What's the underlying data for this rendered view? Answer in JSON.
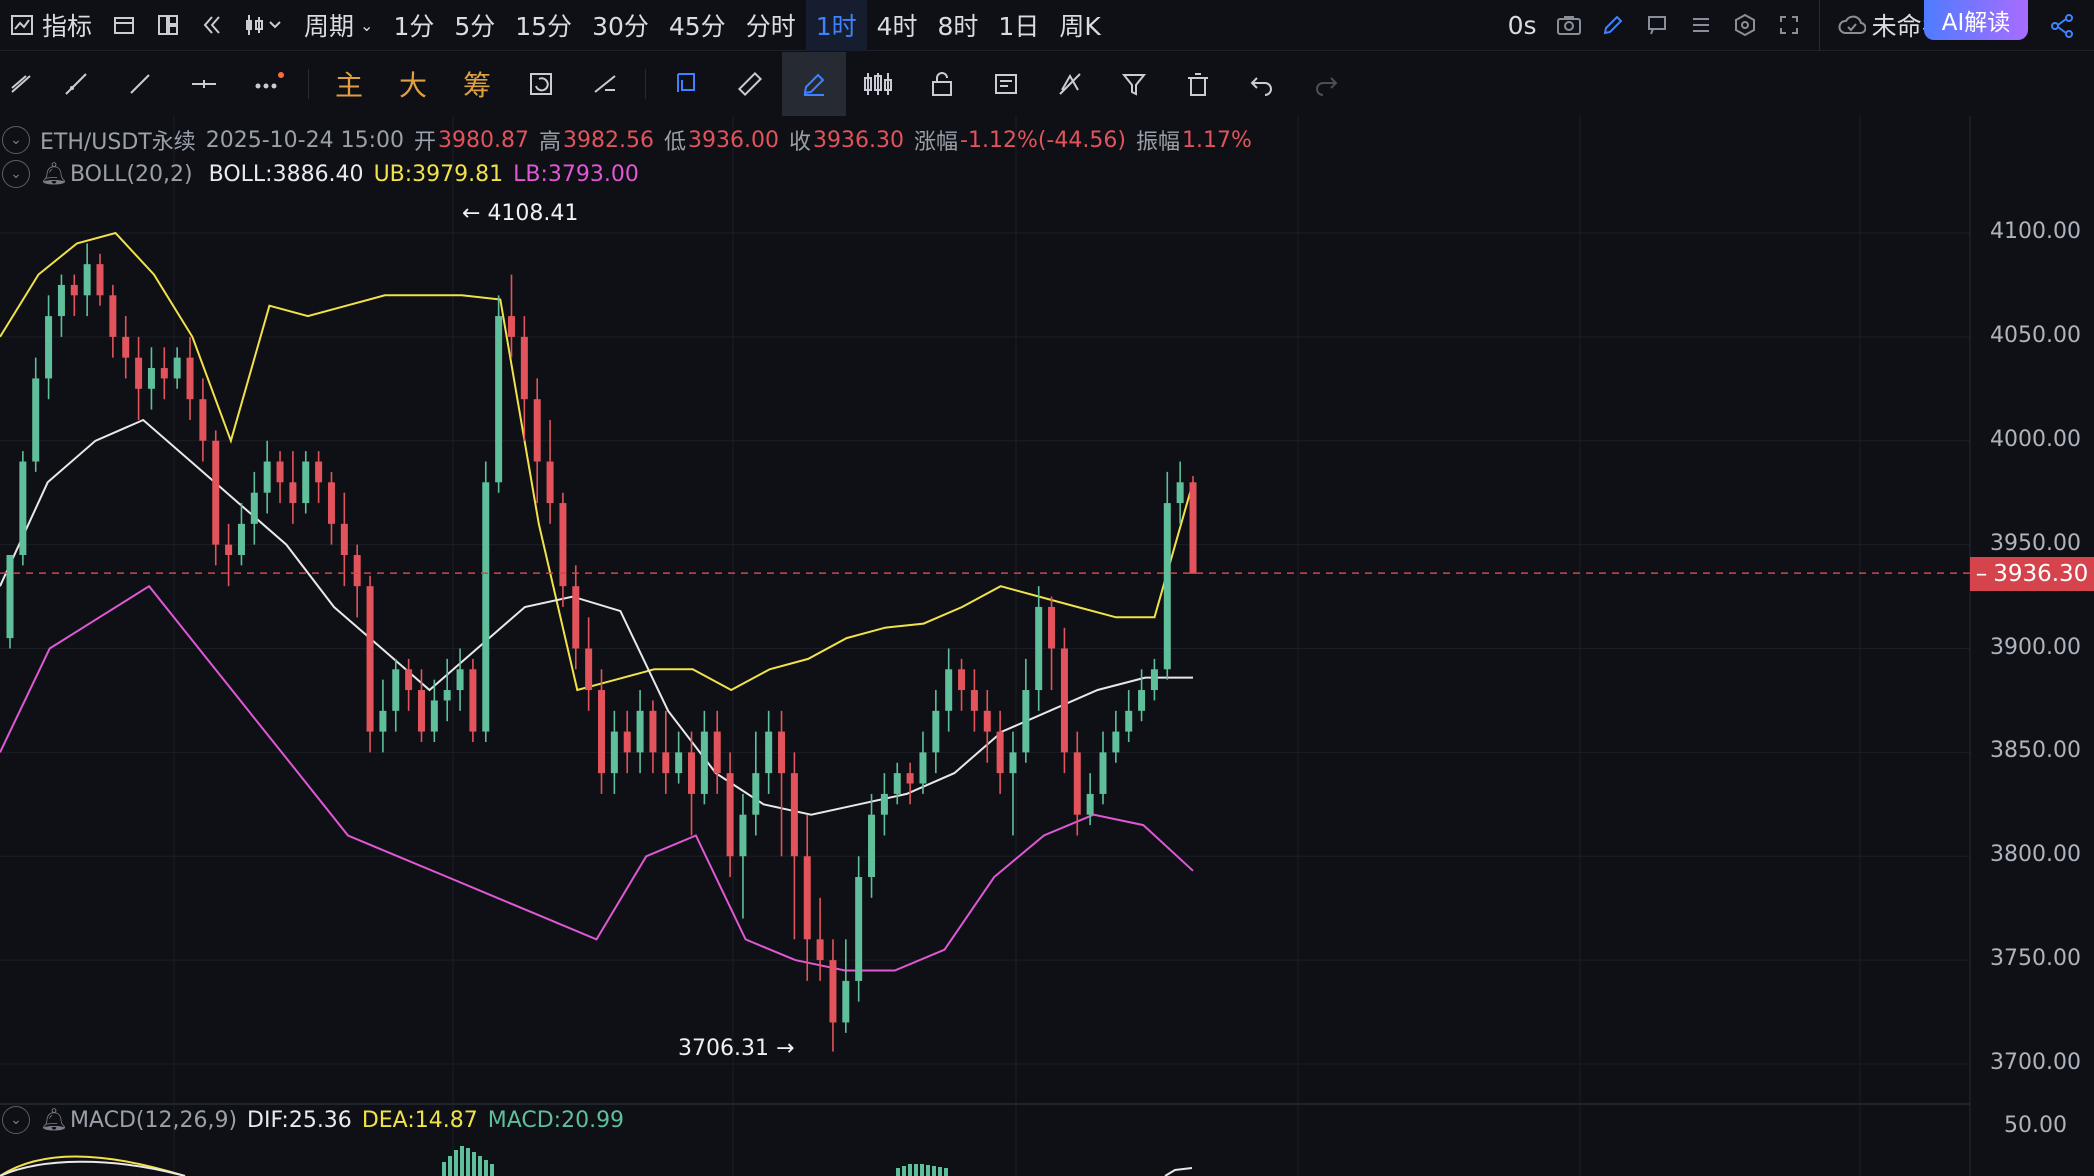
{
  "topbar": {
    "indicators_label": "指标",
    "period_label": "周期",
    "intervals": [
      "1分",
      "5分",
      "15分",
      "30分",
      "45分",
      "分时",
      "1时",
      "4时",
      "8时",
      "1日",
      "周K"
    ],
    "active_interval": "1时",
    "countdown": "0s",
    "layout_name": "未命名",
    "ai_button": "AI解读"
  },
  "toolbar": {
    "main_label": "主",
    "big_label": "大",
    "chips_label": "筹"
  },
  "legend": {
    "symbol": "ETH/USDT永续",
    "datetime": "2025-10-24 15:00",
    "open_label": "开",
    "open": "3980.87",
    "high_label": "高",
    "high": "3982.56",
    "low_label": "低",
    "low": "3936.00",
    "close_label": "收",
    "close": "3936.30",
    "change_label": "涨幅",
    "change": "-1.12%(-44.56)",
    "amplitude_label": "振幅",
    "amplitude": "1.17%"
  },
  "boll": {
    "name": "BOLL(20,2)",
    "mid": "BOLL:3886.40",
    "ub": "UB:3979.81",
    "lb": "LB:3793.00"
  },
  "macd": {
    "name": "MACD(12,26,9)",
    "dif": "DIF:25.36",
    "dea": "DEA:14.87",
    "macd": "MACD:20.99"
  },
  "annotations": {
    "high_marker": "4108.41",
    "low_marker": "3706.31"
  },
  "price_axis": {
    "labels": [
      "4100.00",
      "4050.00",
      "4000.00",
      "3950.00",
      "3900.00",
      "3850.00",
      "3800.00",
      "3750.00",
      "3700.00"
    ],
    "macd_label": "50.00",
    "last_price": "3936.30"
  },
  "colors": {
    "background": "#0e1015",
    "up": "#5fbf9b",
    "down": "#e2535b",
    "boll_mid": "#e8e8e8",
    "boll_ub": "#f2e24a",
    "boll_lb": "#e058d5",
    "accent": "#3e82ff"
  },
  "chart_data": {
    "type": "candlestick",
    "title": "ETH/USDT永续",
    "y_range": [
      3680,
      4130
    ],
    "x_ticks": [],
    "candles": [
      [
        3905,
        3945,
        3935,
        3900
      ],
      [
        3945,
        3990,
        3995,
        3940
      ],
      [
        3990,
        4030,
        4040,
        3985
      ],
      [
        4030,
        4060,
        4070,
        4020
      ],
      [
        4060,
        4075,
        4080,
        4050
      ],
      [
        4075,
        4070,
        4080,
        4060
      ],
      [
        4070,
        4085,
        4095,
        4060
      ],
      [
        4085,
        4070,
        4090,
        4065
      ],
      [
        4070,
        4050,
        4075,
        4040
      ],
      [
        4050,
        4040,
        4060,
        4030
      ],
      [
        4040,
        4025,
        4050,
        4010
      ],
      [
        4025,
        4035,
        4045,
        4015
      ],
      [
        4035,
        4030,
        4045,
        4020
      ],
      [
        4030,
        4040,
        4045,
        4025
      ],
      [
        4040,
        4020,
        4050,
        4010
      ],
      [
        4020,
        4000,
        4030,
        3990
      ],
      [
        4000,
        3950,
        4005,
        3940
      ],
      [
        3950,
        3945,
        3960,
        3930
      ],
      [
        3945,
        3960,
        3970,
        3940
      ],
      [
        3960,
        3975,
        3985,
        3950
      ],
      [
        3975,
        3990,
        4000,
        3965
      ],
      [
        3990,
        3980,
        3995,
        3970
      ],
      [
        3980,
        3970,
        3995,
        3960
      ],
      [
        3970,
        3990,
        3995,
        3965
      ],
      [
        3990,
        3980,
        3995,
        3970
      ],
      [
        3980,
        3960,
        3985,
        3950
      ],
      [
        3960,
        3945,
        3975,
        3930
      ],
      [
        3945,
        3930,
        3950,
        3915
      ],
      [
        3930,
        3860,
        3935,
        3850
      ],
      [
        3860,
        3870,
        3885,
        3850
      ],
      [
        3870,
        3890,
        3895,
        3860
      ],
      [
        3890,
        3880,
        3895,
        3870
      ],
      [
        3880,
        3860,
        3890,
        3855
      ],
      [
        3860,
        3875,
        3885,
        3855
      ],
      [
        3875,
        3880,
        3895,
        3865
      ],
      [
        3880,
        3890,
        3900,
        3870
      ],
      [
        3890,
        3860,
        3895,
        3855
      ],
      [
        3860,
        3980,
        3990,
        3855
      ],
      [
        3980,
        4060,
        4070,
        3975
      ],
      [
        4060,
        4050,
        4080,
        4040
      ],
      [
        4050,
        4020,
        4060,
        4000
      ],
      [
        4020,
        3990,
        4030,
        3970
      ],
      [
        3990,
        3970,
        4010,
        3960
      ],
      [
        3970,
        3930,
        3975,
        3920
      ],
      [
        3930,
        3900,
        3940,
        3890
      ],
      [
        3900,
        3880,
        3915,
        3870
      ],
      [
        3880,
        3840,
        3890,
        3830
      ],
      [
        3840,
        3860,
        3870,
        3830
      ],
      [
        3860,
        3850,
        3870,
        3840
      ],
      [
        3850,
        3870,
        3880,
        3840
      ],
      [
        3870,
        3850,
        3875,
        3840
      ],
      [
        3850,
        3840,
        3870,
        3830
      ],
      [
        3840,
        3850,
        3860,
        3835
      ],
      [
        3850,
        3830,
        3860,
        3810
      ],
      [
        3830,
        3860,
        3870,
        3825
      ],
      [
        3860,
        3840,
        3870,
        3830
      ],
      [
        3840,
        3800,
        3850,
        3790
      ],
      [
        3800,
        3820,
        3830,
        3770
      ],
      [
        3820,
        3840,
        3860,
        3810
      ],
      [
        3840,
        3860,
        3870,
        3830
      ],
      [
        3860,
        3840,
        3870,
        3800
      ],
      [
        3840,
        3800,
        3850,
        3760
      ],
      [
        3800,
        3760,
        3820,
        3740
      ],
      [
        3760,
        3750,
        3780,
        3740
      ],
      [
        3750,
        3720,
        3760,
        3706
      ],
      [
        3720,
        3740,
        3760,
        3715
      ],
      [
        3740,
        3790,
        3800,
        3730
      ],
      [
        3790,
        3820,
        3830,
        3780
      ],
      [
        3820,
        3830,
        3840,
        3810
      ],
      [
        3830,
        3840,
        3845,
        3825
      ],
      [
        3840,
        3835,
        3845,
        3825
      ],
      [
        3835,
        3850,
        3860,
        3830
      ],
      [
        3850,
        3870,
        3880,
        3840
      ],
      [
        3870,
        3890,
        3900,
        3860
      ],
      [
        3890,
        3880,
        3895,
        3870
      ],
      [
        3880,
        3870,
        3890,
        3860
      ],
      [
        3870,
        3860,
        3880,
        3845
      ],
      [
        3860,
        3840,
        3870,
        3830
      ],
      [
        3840,
        3850,
        3860,
        3810
      ],
      [
        3850,
        3880,
        3895,
        3845
      ],
      [
        3880,
        3920,
        3930,
        3870
      ],
      [
        3920,
        3900,
        3925,
        3880
      ],
      [
        3900,
        3850,
        3910,
        3840
      ],
      [
        3850,
        3820,
        3860,
        3810
      ],
      [
        3820,
        3830,
        3840,
        3815
      ],
      [
        3830,
        3850,
        3860,
        3825
      ],
      [
        3850,
        3860,
        3870,
        3845
      ],
      [
        3860,
        3870,
        3880,
        3855
      ],
      [
        3870,
        3880,
        3890,
        3865
      ],
      [
        3880,
        3890,
        3895,
        3875
      ],
      [
        3890,
        3970,
        3985,
        3885
      ],
      [
        3970,
        3980,
        3990,
        3960
      ],
      [
        3980,
        3936,
        3983,
        3936
      ]
    ],
    "boll_ub": [
      4050,
      4080,
      4095,
      4100,
      4080,
      4050,
      4000,
      4065,
      4060,
      4065,
      4070,
      4070,
      4070,
      4068,
      3960,
      3880,
      3885,
      3890,
      3890,
      3880,
      3890,
      3895,
      3905,
      3910,
      3912,
      3920,
      3930,
      3925,
      3920,
      3915,
      3915,
      3980
    ],
    "boll_mid": [
      3930,
      3980,
      4000,
      4010,
      3990,
      3970,
      3950,
      3920,
      3900,
      3880,
      3900,
      3920,
      3925,
      3918,
      3870,
      3840,
      3825,
      3820,
      3825,
      3830,
      3840,
      3860,
      3870,
      3880,
      3886,
      3886
    ],
    "boll_lb": [
      3850,
      3900,
      3915,
      3930,
      3900,
      3870,
      3840,
      3810,
      3800,
      3790,
      3780,
      3770,
      3760,
      3800,
      3810,
      3760,
      3750,
      3745,
      3745,
      3755,
      3790,
      3810,
      3820,
      3815,
      3793
    ]
  }
}
